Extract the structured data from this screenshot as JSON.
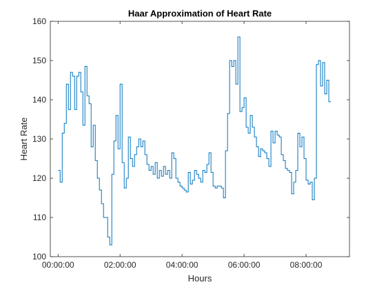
{
  "chart_data": {
    "type": "stairs",
    "title": "Haar Approximation of Heart Rate",
    "xlabel": "Hours",
    "ylabel": "Heart Rate",
    "color": "#0072bd",
    "x": [
      0,
      4,
      8,
      12,
      16,
      20,
      24,
      28,
      32,
      36,
      40,
      44,
      48,
      52,
      56,
      60,
      64,
      68,
      72,
      76,
      80,
      84,
      88,
      92,
      96,
      100,
      104,
      108,
      112,
      116,
      120,
      124,
      128,
      132,
      136,
      140,
      144,
      148,
      152,
      156,
      160,
      164,
      168,
      172,
      176,
      180,
      184,
      188,
      192,
      196,
      200,
      204,
      208,
      212,
      216,
      220,
      224,
      228,
      232,
      236,
      240,
      244,
      248,
      252,
      256,
      260,
      264,
      268,
      272,
      276,
      280,
      284,
      288,
      292,
      296,
      300,
      304,
      308,
      312,
      316,
      320,
      324,
      328,
      332,
      336,
      340,
      344,
      348,
      352,
      356,
      360,
      364,
      368,
      372,
      376,
      380,
      384,
      388,
      392,
      396,
      400,
      404,
      408,
      412,
      416,
      420,
      424,
      428,
      432,
      436,
      440,
      444,
      448,
      452,
      456,
      460,
      464,
      468,
      472,
      476,
      480,
      484,
      488,
      492,
      496,
      500,
      504,
      508,
      512,
      516,
      520,
      524
    ],
    "values": [
      122,
      119,
      131.5,
      134,
      144,
      137.5,
      147,
      146,
      137.5,
      146,
      147,
      142,
      133.5,
      148.5,
      141,
      139,
      128,
      133.5,
      124.5,
      120,
      117,
      113.5,
      110,
      110,
      105,
      103,
      121,
      129.5,
      136,
      127.5,
      144,
      124,
      117.5,
      120,
      130.5,
      125,
      123,
      126,
      128,
      130,
      128,
      129.5,
      126,
      123.5,
      122,
      123,
      121,
      124,
      120,
      122,
      120.5,
      123,
      121,
      122,
      120,
      126.5,
      125,
      120,
      119,
      118,
      117.5,
      117,
      116.5,
      121.5,
      118.5,
      119.5,
      122,
      121,
      120,
      119,
      122,
      121.5,
      123.5,
      126.5,
      121.5,
      118,
      117.5,
      118,
      118,
      117.5,
      115,
      127,
      136.5,
      150,
      148.5,
      150,
      144,
      156,
      137,
      138,
      140.5,
      133,
      131.5,
      136,
      133,
      130.5,
      128,
      125.5,
      127.5,
      127,
      126.5,
      125,
      123,
      132,
      129,
      132,
      131,
      130.5,
      126,
      124.5,
      122.5,
      122,
      121.5,
      116,
      119,
      122,
      131.5,
      128,
      130.5,
      125,
      119.5,
      118.5,
      119,
      114.5,
      120,
      149,
      150,
      143.5,
      149.5,
      141.5,
      145,
      139.5
    ],
    "xlim": [
      -15,
      564
    ],
    "xticks": [
      {
        "value": 0,
        "label": "00:00:00"
      },
      {
        "value": 120,
        "label": "02:00:00"
      },
      {
        "value": 240,
        "label": "04:00:00"
      },
      {
        "value": 360,
        "label": "06:00:00"
      },
      {
        "value": 480,
        "label": "08:00:00"
      }
    ],
    "ylim": [
      100,
      160
    ],
    "yticks": [
      100,
      110,
      120,
      130,
      140,
      150,
      160
    ]
  }
}
